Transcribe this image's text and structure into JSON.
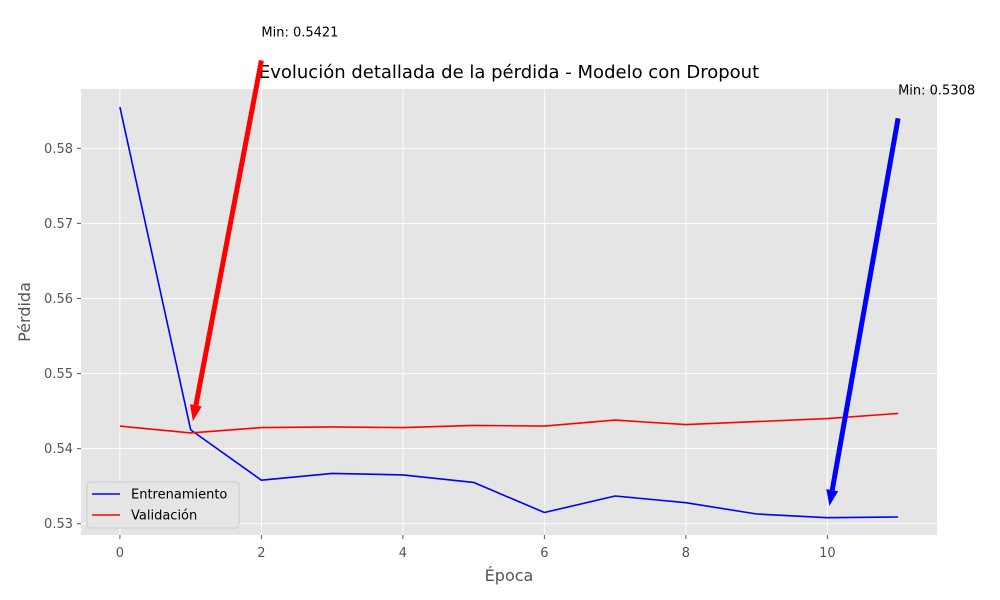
{
  "chart_data": {
    "type": "line",
    "title": "Evolución detallada de la pérdida - Modelo con Dropout",
    "xlabel": "Época",
    "ylabel": "Pérdida",
    "xlim": [
      -0.55,
      11.55
    ],
    "ylim": [
      0.5285,
      0.5879
    ],
    "xticks": [
      0,
      2,
      4,
      6,
      8,
      10
    ],
    "yticks": [
      0.53,
      0.54,
      0.55,
      0.56,
      0.57,
      0.58
    ],
    "xtick_labels": [
      "0",
      "2",
      "4",
      "6",
      "8",
      "10"
    ],
    "ytick_labels": [
      "0.53",
      "0.54",
      "0.55",
      "0.56",
      "0.57",
      "0.58"
    ],
    "grid": true,
    "background": "#e5e5e5",
    "legend_position": "lower-left",
    "x": [
      0,
      1,
      2,
      3,
      4,
      5,
      6,
      7,
      8,
      9,
      10,
      11
    ],
    "series": [
      {
        "name": "Entrenamiento",
        "color": "#0000ff",
        "values": [
          0.5855,
          0.5425,
          0.5358,
          0.5367,
          0.5365,
          0.5355,
          0.5315,
          0.5337,
          0.5328,
          0.5313,
          0.5308,
          0.5309
        ]
      },
      {
        "name": "Validación",
        "color": "#ff0000",
        "values": [
          0.543,
          0.5421,
          0.5428,
          0.5429,
          0.5428,
          0.5431,
          0.543,
          0.5438,
          0.5432,
          0.5436,
          0.544,
          0.5447
        ]
      }
    ],
    "annotations": [
      {
        "text": "Min: 0.5421",
        "color": "#ff0000",
        "target": [
          1,
          0.5421
        ],
        "text_pos": [
          2,
          0.5917
        ]
      },
      {
        "text": "Min: 0.5308",
        "color": "#0000ff",
        "target": [
          10,
          0.5308
        ],
        "text_pos": [
          11,
          0.584
        ]
      }
    ]
  }
}
